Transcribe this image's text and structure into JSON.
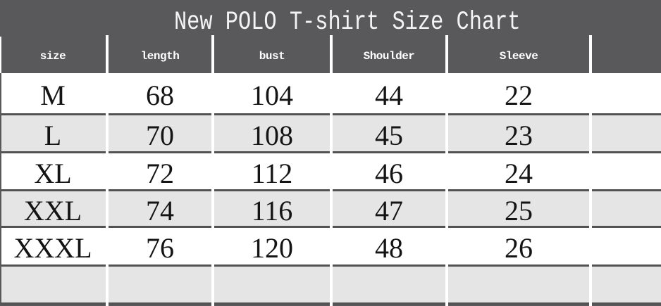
{
  "title": "New POLO T-shirt Size Chart",
  "colors": {
    "header_bg": "#59595b",
    "row_bg": "#ffffff",
    "row_alt_bg": "#e5e5e5",
    "rule_line": "#525252",
    "header_text": "#ffffff",
    "data_text": "#141414"
  },
  "table": {
    "headers": [
      "size",
      "length",
      "bust",
      "Shoulder",
      "Sleeve",
      ""
    ],
    "rows": [
      [
        "M",
        "68",
        "104",
        "44",
        "22",
        ""
      ],
      [
        "L",
        "70",
        "108",
        "45",
        "23",
        ""
      ],
      [
        "XL",
        "72",
        "112",
        "46",
        "24",
        ""
      ],
      [
        "XXL",
        "74",
        "116",
        "47",
        "25",
        ""
      ],
      [
        "XXXL",
        "76",
        "120",
        "48",
        "26",
        ""
      ],
      [
        "",
        "",
        "",
        "",
        "",
        ""
      ]
    ]
  },
  "chart_data": {
    "type": "table",
    "title": "New POLO T-shirt Size Chart",
    "columns": [
      "size",
      "length",
      "bust",
      "Shoulder",
      "Sleeve"
    ],
    "rows": [
      [
        "M",
        68,
        104,
        44,
        22
      ],
      [
        "L",
        70,
        108,
        45,
        23
      ],
      [
        "XL",
        72,
        112,
        46,
        24
      ],
      [
        "XXL",
        74,
        116,
        47,
        25
      ],
      [
        "XXXL",
        76,
        120,
        48,
        26
      ]
    ],
    "notes": "Alternating white and light-gray rows; dark gray title and header band; one trailing empty row and an empty sixth column; bottom edge shows a clipped dark strip of the next band."
  }
}
